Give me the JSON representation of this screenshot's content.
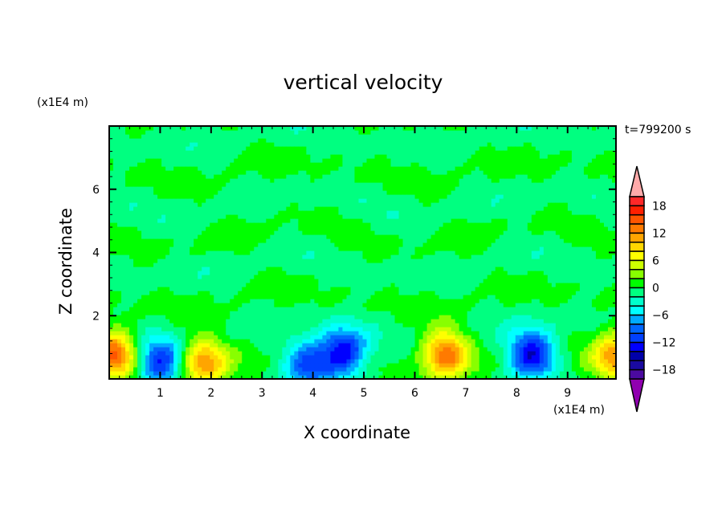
{
  "chart_data": {
    "type": "heatmap",
    "subtype": "filled-contour",
    "title": "vertical velocity",
    "xlabel": "X coordinate",
    "ylabel": "Z coordinate",
    "x_unit": "(x1E4 m)",
    "y_unit": "(x1E4 m)",
    "time_label": "t=799200 s",
    "xlim": [
      0,
      9.95
    ],
    "ylim": [
      0,
      8
    ],
    "x_ticks": [
      "1",
      "2",
      "3",
      "4",
      "5",
      "6",
      "7",
      "8",
      "9"
    ],
    "y_ticks": [
      "2",
      "4",
      "6"
    ],
    "extrema": [
      {
        "x": 0.1,
        "z": 0.8,
        "value": 14
      },
      {
        "x": 1.0,
        "z": 0.5,
        "value": -12
      },
      {
        "x": 1.85,
        "z": 0.55,
        "value": 12
      },
      {
        "x": 3.9,
        "z": 0.5,
        "value": -10
      },
      {
        "x": 4.6,
        "z": 0.85,
        "value": -14
      },
      {
        "x": 6.6,
        "z": 0.8,
        "value": 14
      },
      {
        "x": 8.3,
        "z": 0.8,
        "value": -14
      },
      {
        "x": 9.95,
        "z": 0.8,
        "value": 12
      }
    ],
    "colorbar": {
      "levels_min": -20,
      "levels_max": 20,
      "interval": 2,
      "tick_labels": [
        "18",
        "12",
        "6",
        "0",
        "-6",
        "-12",
        "-18"
      ],
      "tick_values": [
        18,
        12,
        6,
        0,
        -6,
        -12,
        -18
      ],
      "colors_top_to_bottom": [
        "#ff2828",
        "#ff2000",
        "#ff5500",
        "#ff7a00",
        "#ffa500",
        "#ffd700",
        "#ffff00",
        "#ccff00",
        "#88ff00",
        "#00ff00",
        "#00ff80",
        "#00ffcc",
        "#00ffff",
        "#00aaff",
        "#0066ff",
        "#0040ff",
        "#0000ff",
        "#0000aa",
        "#1a0aa0",
        "#4b0aa0"
      ],
      "over_color": "#ffaaaa",
      "under_color": "#9000b0"
    }
  }
}
